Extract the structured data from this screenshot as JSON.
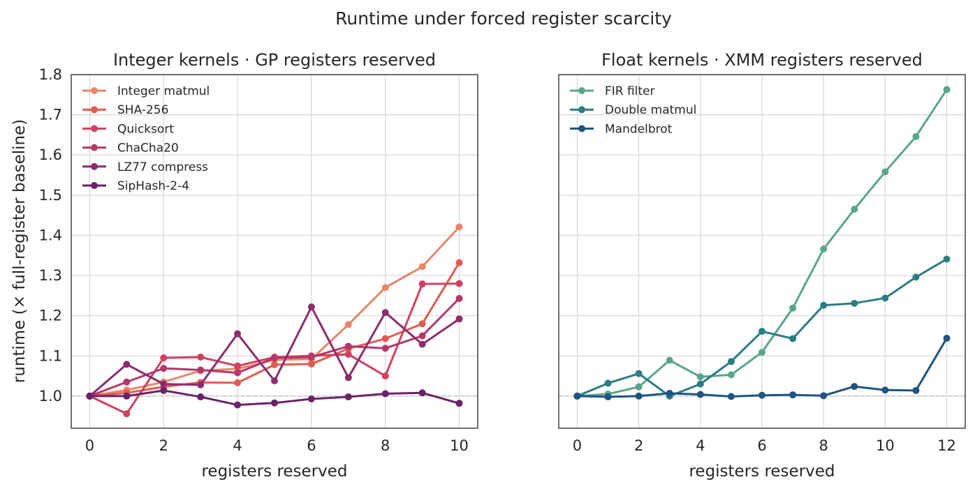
{
  "chart_data": {
    "title": "Runtime under forced register scarcity",
    "ylabel": "runtime (× full-register baseline)",
    "shared_ylim": [
      0.92,
      1.8
    ],
    "yticks": [
      1.0,
      1.1,
      1.2,
      1.3,
      1.4,
      1.5,
      1.6,
      1.7,
      1.8
    ],
    "baseline": 1.0,
    "grid": true,
    "legend_placement": "top-left",
    "panels": [
      {
        "type": "line",
        "title": "Integer kernels · GP registers reserved",
        "xlabel": "registers reserved",
        "xlim": [
          -0.5,
          10.5
        ],
        "xticks": [
          0,
          2,
          4,
          6,
          8,
          10
        ],
        "series": [
          {
            "name": "Integer matmul",
            "color": "#e8866a",
            "x": [
              0,
              1,
              2,
              3,
              4,
              5,
              6,
              7,
              8,
              9,
              10
            ],
            "values": [
              1.0,
              1.015,
              1.035,
              1.063,
              1.068,
              1.09,
              1.092,
              1.178,
              1.27,
              1.322,
              1.421
            ]
          },
          {
            "name": "SHA-256",
            "color": "#e25c4f",
            "x": [
              0,
              1,
              2,
              3,
              4,
              5,
              6,
              7,
              8,
              9,
              10
            ],
            "values": [
              1.0,
              1.008,
              1.023,
              1.034,
              1.033,
              1.078,
              1.08,
              1.118,
              1.143,
              1.18,
              1.332
            ]
          },
          {
            "name": "Quicksort",
            "color": "#d0415f",
            "x": [
              0,
              1,
              2,
              3,
              4,
              5,
              6,
              7,
              8,
              9,
              10
            ],
            "values": [
              1.0,
              0.956,
              1.095,
              1.097,
              1.075,
              1.097,
              1.1,
              1.104,
              1.05,
              1.279,
              1.28
            ]
          },
          {
            "name": "ChaCha20",
            "color": "#b3386a",
            "x": [
              0,
              1,
              2,
              3,
              4,
              5,
              6,
              7,
              8,
              9,
              10
            ],
            "values": [
              1.0,
              1.035,
              1.069,
              1.065,
              1.058,
              1.095,
              1.097,
              1.124,
              1.119,
              1.15,
              1.243
            ]
          },
          {
            "name": "LZ77 compress",
            "color": "#8c2c6e",
            "x": [
              0,
              1,
              2,
              3,
              4,
              5,
              6,
              7,
              8,
              9,
              10
            ],
            "values": [
              1.0,
              1.079,
              1.03,
              1.028,
              1.155,
              1.038,
              1.222,
              1.046,
              1.208,
              1.129,
              1.192
            ]
          },
          {
            "name": "SipHash-2-4",
            "color": "#6a2268",
            "x": [
              0,
              1,
              2,
              3,
              4,
              5,
              6,
              7,
              8,
              9,
              10
            ],
            "values": [
              1.0,
              1.0,
              1.014,
              0.998,
              0.978,
              0.983,
              0.993,
              0.998,
              1.006,
              1.008,
              0.982
            ]
          }
        ]
      },
      {
        "type": "line",
        "title": "Float kernels · XMM registers reserved",
        "xlabel": "registers reserved",
        "xlim": [
          -0.6,
          12.6
        ],
        "xticks": [
          0,
          2,
          4,
          6,
          8,
          10,
          12
        ],
        "series": [
          {
            "name": "FIR filter",
            "color": "#5aa58e",
            "x": [
              0,
              1,
              2,
              3,
              4,
              5,
              6,
              7,
              8,
              9,
              10,
              11,
              12
            ],
            "values": [
              1.0,
              1.005,
              1.023,
              1.089,
              1.048,
              1.053,
              1.109,
              1.219,
              1.366,
              1.465,
              1.558,
              1.646,
              1.763
            ]
          },
          {
            "name": "Double matmul",
            "color": "#2c7c83",
            "x": [
              0,
              1,
              2,
              3,
              4,
              5,
              6,
              7,
              8,
              9,
              10,
              11,
              12
            ],
            "values": [
              1.0,
              1.032,
              1.056,
              1.0,
              1.03,
              1.086,
              1.161,
              1.143,
              1.226,
              1.231,
              1.244,
              1.296,
              1.341
            ]
          },
          {
            "name": "Mandelbrot",
            "color": "#1f5480",
            "x": [
              0,
              1,
              2,
              3,
              4,
              5,
              6,
              7,
              8,
              9,
              10,
              11,
              12
            ],
            "values": [
              1.0,
              0.998,
              1.0,
              1.007,
              1.004,
              0.999,
              1.002,
              1.003,
              1.001,
              1.024,
              1.015,
              1.014,
              1.144
            ]
          }
        ]
      }
    ]
  }
}
